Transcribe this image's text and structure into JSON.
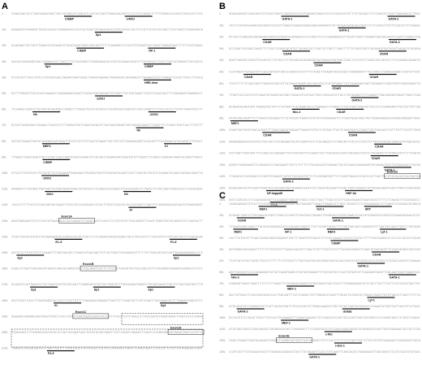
{
  "figure": {
    "panels": [
      {
        "letter": "A",
        "rows": [
          {
            "pos": "1",
            "labels": [
              "C/EBP",
              "-1400J"
            ]
          },
          {
            "pos": "101",
            "labels": [
              "Sp1"
            ]
          },
          {
            "pos": "201",
            "labels": [
              "C/EBP",
              "NF-1"
            ]
          },
          {
            "pos": "301",
            "labels": [
              "Sp1",
              "C/EBP"
            ]
          },
          {
            "pos": "401",
            "labels": [
              "HRE-hInd"
            ]
          },
          {
            "pos": "501",
            "labels": [
              "-1200J"
            ]
          },
          {
            "pos": "601",
            "labels": [
              "Nh",
              "-1100J"
            ]
          },
          {
            "pos": "701",
            "labels": [
              "Nh"
            ]
          },
          {
            "pos": "801",
            "labels": [
              "MEF4",
              "Kl"
            ]
          },
          {
            "pos": "901",
            "labels": [
              "C/EBP"
            ]
          },
          {
            "pos": "1001",
            "labels": [
              "-1000J"
            ]
          },
          {
            "pos": "1101",
            "labels": [
              "-900J",
              "Nh"
            ]
          },
          {
            "pos": "1201",
            "labels": [
              "Kl"
            ]
          },
          {
            "pos": "1301",
            "labels": [
              "Exon1A"
            ]
          },
          {
            "pos": "1401",
            "labels": [
              "E1-3'",
              "F2-3'"
            ]
          },
          {
            "pos": "1501",
            "labels": [
              "Sp1",
              "Sp1"
            ]
          },
          {
            "pos": "1601",
            "labels": [
              "Exon1B"
            ]
          },
          {
            "pos": "1701",
            "labels": [
              "Sp1",
              "Sp1",
              "Sp1"
            ]
          },
          {
            "pos": "1801",
            "labels": [
              "Kl",
              "Sp1"
            ]
          },
          {
            "pos": "1901",
            "labels": [
              "Exon1C"
            ]
          },
          {
            "pos": "2001",
            "labels": [
              "Exon1D"
            ]
          },
          {
            "pos": "2101",
            "labels": [
              "F3-3'"
            ]
          }
        ]
      },
      {
        "letter": "B",
        "rows": [
          {
            "pos": "1",
            "labels": [
              "GATA-1",
              "GATA-2"
            ]
          },
          {
            "pos": "101",
            "labels": [
              "GATA-2"
            ]
          },
          {
            "pos": "201",
            "labels": [
              "CDAR",
              "GATA-2"
            ]
          },
          {
            "pos": "301",
            "labels": [
              "CDAR",
              "CDAR"
            ]
          },
          {
            "pos": "401",
            "labels": [
              "CDAR"
            ]
          },
          {
            "pos": "501",
            "labels": [
              "CDAR",
              "CDAR"
            ]
          },
          {
            "pos": "601",
            "labels": [
              "GATA-1",
              "CDAR"
            ]
          },
          {
            "pos": "701",
            "labels": [
              "GATA-2"
            ]
          },
          {
            "pos": "801",
            "labels": [
              "Nkx-2",
              "CDAR"
            ]
          },
          {
            "pos": "901",
            "labels": [
              "MEF1"
            ]
          },
          {
            "pos": "1001",
            "labels": [
              "CDAR",
              "CDAR"
            ]
          },
          {
            "pos": "1101",
            "labels": [
              "CDAR"
            ]
          },
          {
            "pos": "1201",
            "labels": [
              "CDAR"
            ]
          },
          {
            "pos": "1301",
            "labels": [
              "GATA-1"
            ]
          },
          {
            "pos": "1401",
            "labels": [
              "GATA-2",
              "Exon1D"
            ]
          },
          {
            "pos": "1501",
            "labels": [
              "NF-kappaB",
              "HNF-3b"
            ]
          },
          {
            "pos": "1601",
            "labels": [
              "YY-1"
            ]
          }
        ]
      },
      {
        "letter": "C",
        "rows": [
          {
            "pos": "1",
            "labels": [
              "MEF1",
              "Oct-1",
              "SRY"
            ]
          },
          {
            "pos": "101",
            "labels": [
              "CDAR",
              "GATA-1"
            ]
          },
          {
            "pos": "201",
            "labels": [
              "MEF1",
              "AP-1",
              "MEF2",
              "Lyf-1"
            ]
          },
          {
            "pos": "301",
            "labels": [
              "C/EBP"
            ]
          },
          {
            "pos": "401",
            "labels": [
              "CDAR"
            ]
          },
          {
            "pos": "501",
            "labels": [
              "GATA-1"
            ]
          },
          {
            "pos": "601",
            "labels": [
              "Nkx-2",
              "GATA-1"
            ]
          },
          {
            "pos": "701",
            "labels": [
              "MEF-1"
            ]
          },
          {
            "pos": "801",
            "labels": [
              "Lyf-1"
            ]
          },
          {
            "pos": "901",
            "labels": [
              "GATA-2",
              "deltaE"
            ]
          },
          {
            "pos": "1001",
            "labels": [
              "MEF-1"
            ]
          },
          {
            "pos": "1101",
            "labels": [
              "c-Rel"
            ]
          },
          {
            "pos": "1201",
            "labels": [
              "Exon1E",
              "c-Ets-1"
            ]
          },
          {
            "pos": "1301",
            "labels": [
              "GATA-1"
            ]
          }
        ]
      }
    ]
  }
}
